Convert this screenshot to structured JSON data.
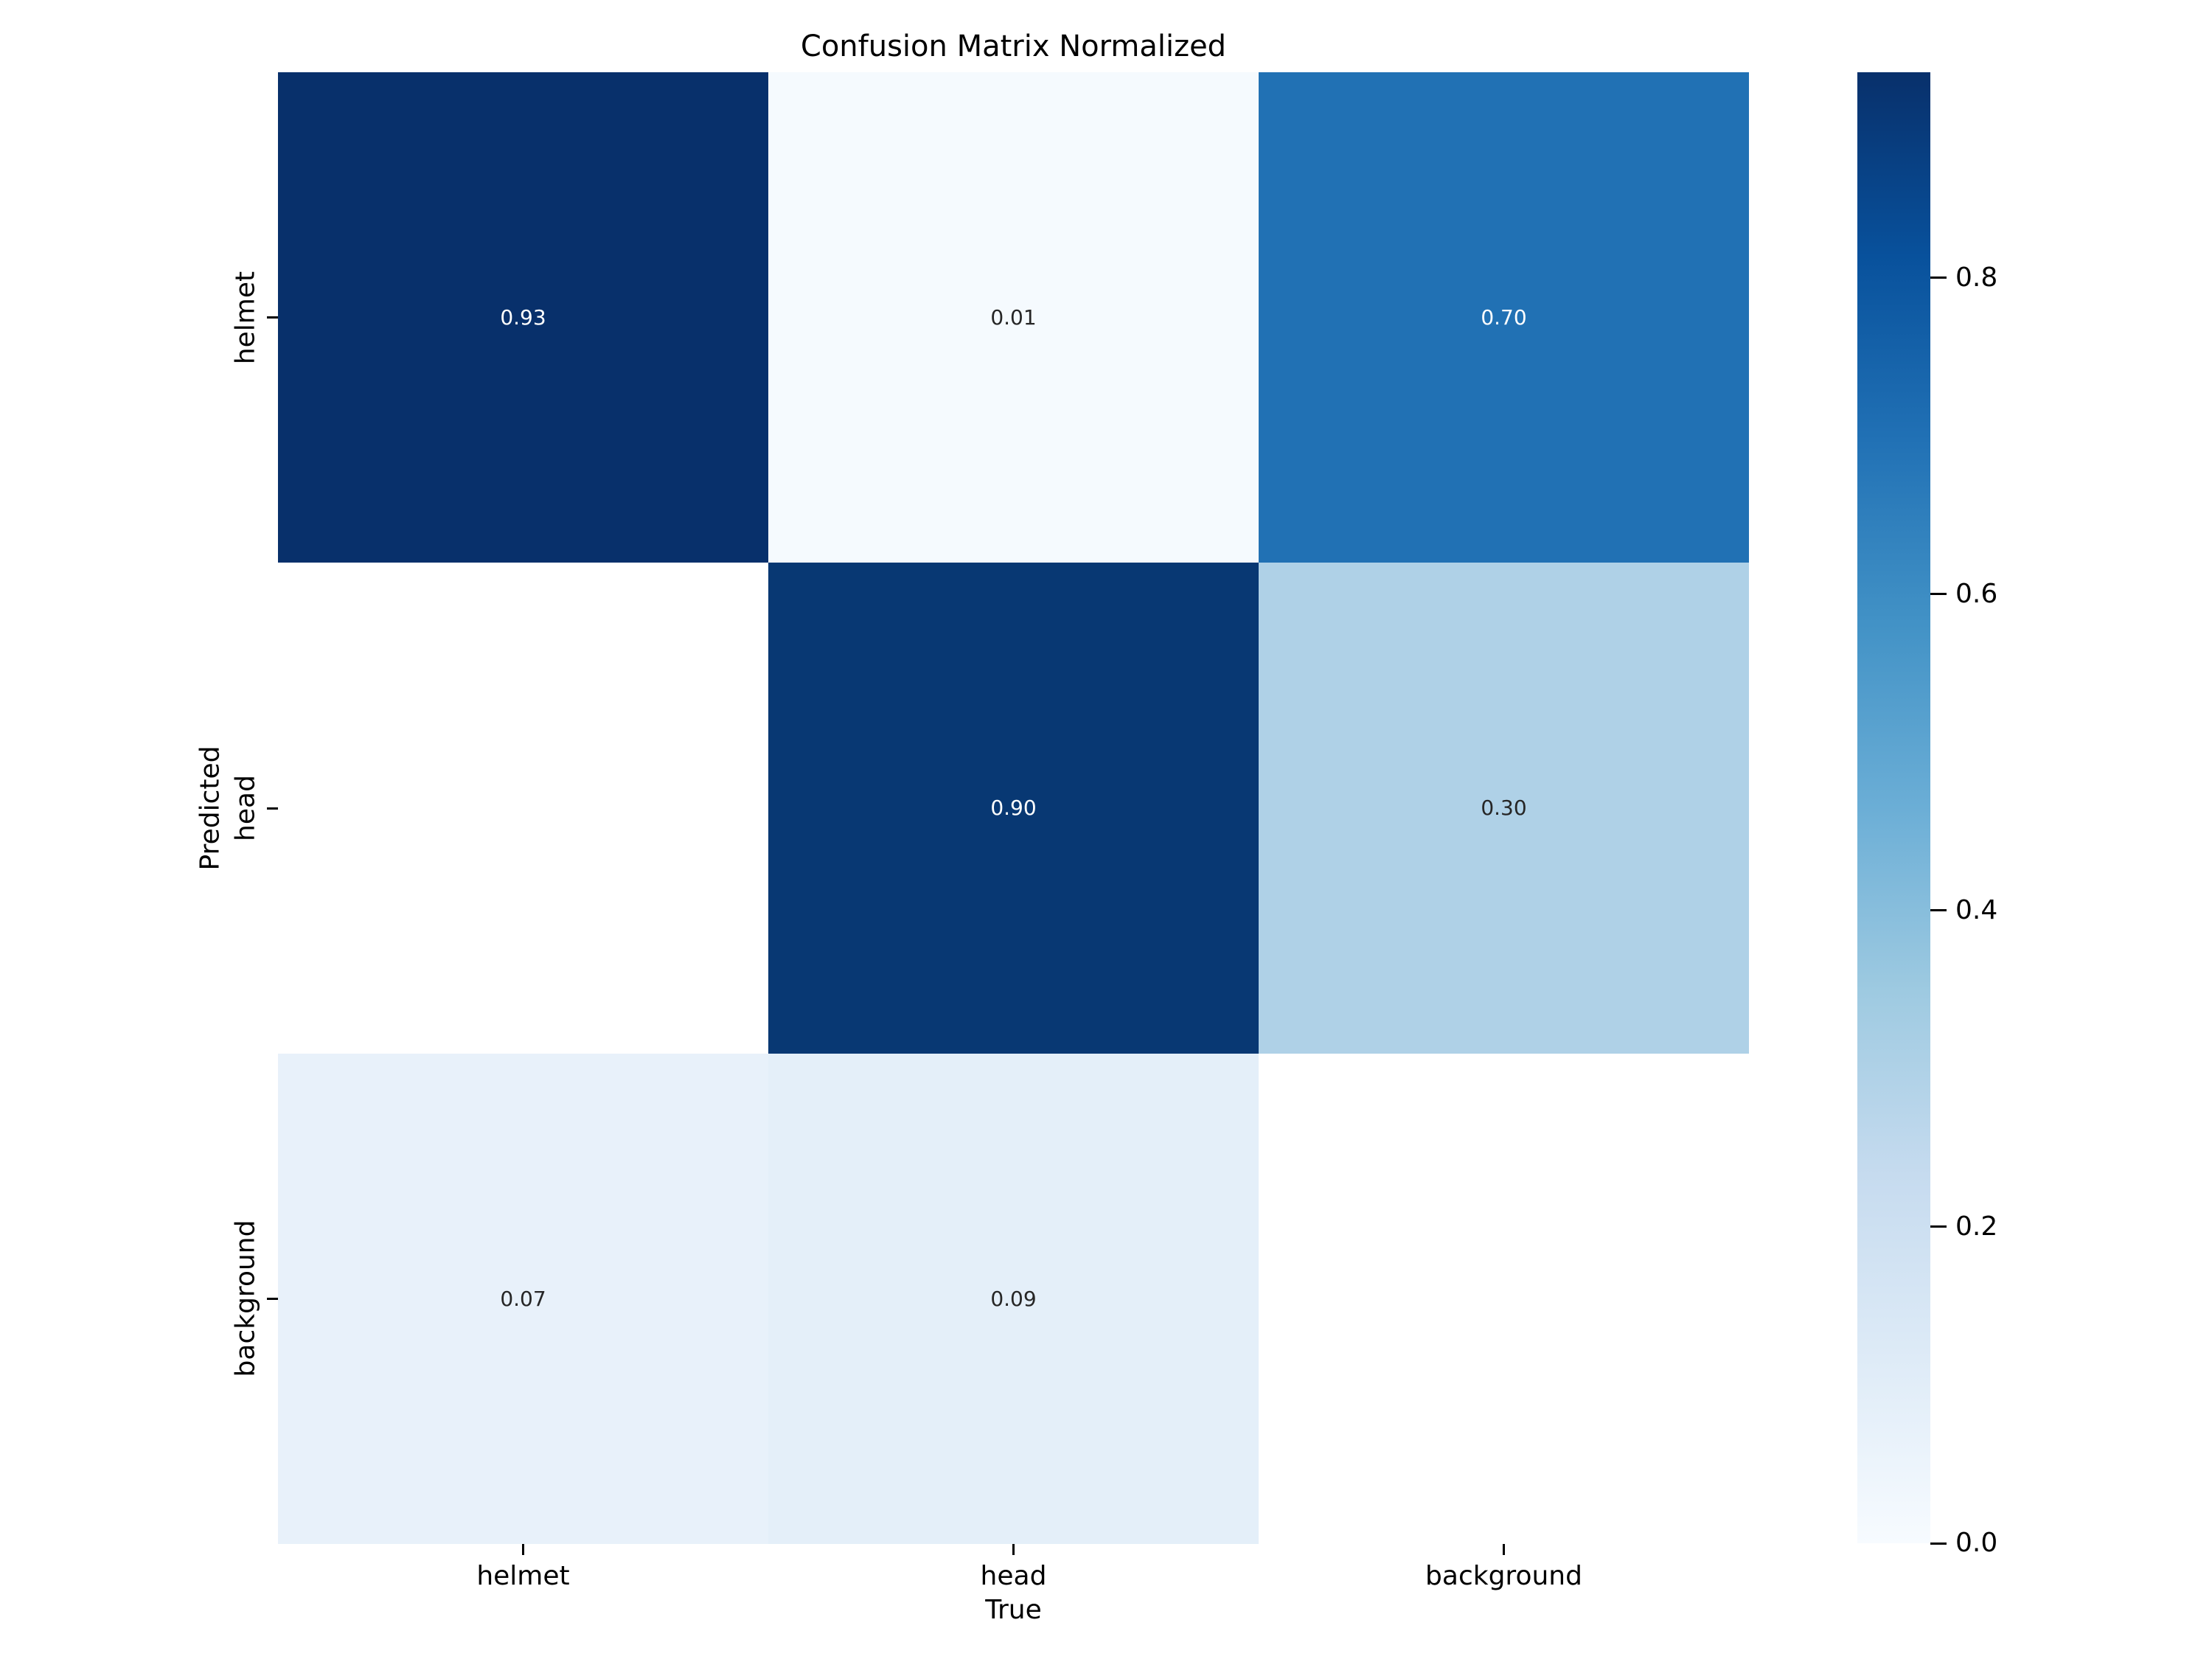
{
  "chart_data": {
    "type": "heatmap",
    "title": "Confusion Matrix Normalized",
    "xlabel": "True",
    "ylabel": "Predicted",
    "x_categories": [
      "helmet",
      "head",
      "background"
    ],
    "y_categories": [
      "helmet",
      "head",
      "background"
    ],
    "matrix": [
      [
        0.93,
        0.01,
        0.7
      ],
      [
        null,
        0.9,
        0.3
      ],
      [
        0.07,
        0.09,
        null
      ]
    ],
    "cell_labels": [
      [
        "0.93",
        "0.01",
        "0.70"
      ],
      [
        "",
        "0.90",
        "0.30"
      ],
      [
        "0.07",
        "0.09",
        ""
      ]
    ],
    "cell_colors": [
      [
        "#08306b",
        "#f5fafe",
        "#2171b4"
      ],
      [
        "#ffffff",
        "#083873",
        "#afd1e7"
      ],
      [
        "#e8f1fa",
        "#e4eff9",
        "#ffffff"
      ]
    ],
    "cell_text_colors": [
      [
        "#ffffff",
        "#262626",
        "#ffffff"
      ],
      [
        "",
        "#ffffff",
        "#262626"
      ],
      [
        "#262626",
        "#262626",
        ""
      ]
    ],
    "vmin": 0.0,
    "vmax": 0.93,
    "grid": false,
    "legend_position": "right-colorbar",
    "colorbar": {
      "tick_labels": [
        "0.8",
        "0.6",
        "0.4",
        "0.2",
        "0.0"
      ],
      "tick_values": [
        0.8,
        0.6,
        0.4,
        0.2,
        0.0
      ],
      "gradient": [
        {
          "pos": 0,
          "color": "#08306b"
        },
        {
          "pos": 12.5,
          "color": "#08519c"
        },
        {
          "pos": 25,
          "color": "#2171b5"
        },
        {
          "pos": 37.5,
          "color": "#4292c6"
        },
        {
          "pos": 50,
          "color": "#6baed6"
        },
        {
          "pos": 62.5,
          "color": "#9ecae1"
        },
        {
          "pos": 75,
          "color": "#c6dbef"
        },
        {
          "pos": 87.5,
          "color": "#deebf7"
        },
        {
          "pos": 100,
          "color": "#f7fbff"
        }
      ]
    },
    "text_color": "#000000"
  }
}
